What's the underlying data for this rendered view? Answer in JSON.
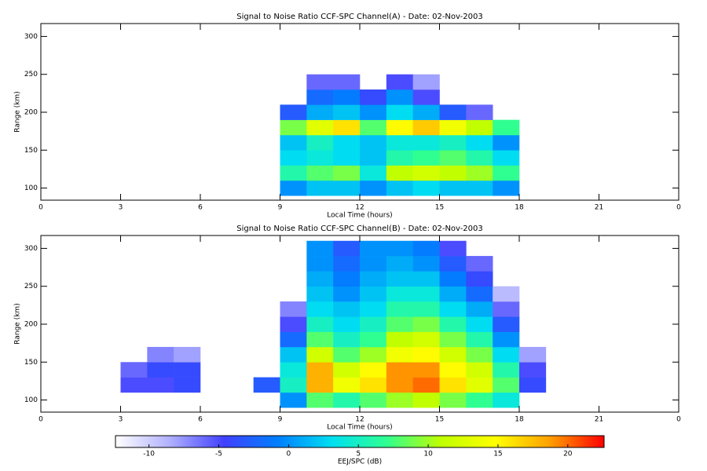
{
  "chart_data": [
    {
      "type": "heatmap",
      "title": "Signal to Noise Ratio CCF-SPC Channel(A) - Date: 02-Nov-2003",
      "xlabel": "Local Time (hours)",
      "ylabel": "Range (km)",
      "xlim": [
        0,
        24
      ],
      "xticks": [
        0,
        3,
        6,
        9,
        12,
        15,
        18,
        21,
        {
          "value": 24,
          "label": "0"
        }
      ],
      "ylim": [
        84,
        317
      ],
      "yticks": [
        100,
        150,
        200,
        250,
        300
      ],
      "x": [
        0.5,
        1.5,
        2.5,
        3.5,
        4.5,
        5.5,
        6.5,
        7.5,
        8.5,
        9.5,
        10.5,
        11.5,
        12.5,
        13.5,
        14.5,
        15.5,
        16.5,
        17.5,
        18.5,
        19.5,
        20.5,
        21.5,
        22.5,
        23.5
      ],
      "y": [
        100,
        120,
        140,
        160,
        180,
        200,
        220,
        240
      ],
      "z": [
        [
          null,
          null,
          null,
          null,
          null,
          null,
          null,
          null,
          null,
          0,
          2,
          2,
          0,
          2,
          3,
          2,
          2,
          0,
          null,
          null,
          null,
          null,
          null,
          null
        ],
        [
          null,
          null,
          null,
          null,
          null,
          null,
          null,
          null,
          null,
          6,
          8,
          9,
          4,
          11,
          12,
          11,
          10,
          7,
          null,
          null,
          null,
          null,
          null,
          null
        ],
        [
          null,
          null,
          null,
          null,
          null,
          null,
          null,
          null,
          null,
          3,
          4,
          3,
          2,
          6,
          7,
          8,
          6,
          3,
          null,
          null,
          null,
          null,
          null,
          null
        ],
        [
          null,
          null,
          null,
          null,
          null,
          null,
          null,
          null,
          null,
          2,
          5,
          3,
          2,
          4,
          4,
          5,
          3,
          0,
          null,
          null,
          null,
          null,
          null,
          null
        ],
        [
          null,
          null,
          null,
          null,
          null,
          null,
          null,
          null,
          null,
          9,
          13,
          16,
          8,
          15,
          17,
          14,
          11,
          7,
          null,
          null,
          null,
          null,
          null,
          null
        ],
        [
          null,
          null,
          null,
          null,
          null,
          null,
          null,
          null,
          null,
          -3,
          1,
          2,
          0,
          3,
          1,
          -3,
          -6,
          null,
          null,
          null,
          null,
          null,
          null,
          null
        ],
        [
          null,
          null,
          null,
          null,
          null,
          null,
          null,
          null,
          null,
          null,
          -2,
          -1,
          -4,
          0,
          -5,
          null,
          null,
          null,
          null,
          null,
          null,
          null,
          null,
          null
        ],
        [
          null,
          null,
          null,
          null,
          null,
          null,
          null,
          null,
          null,
          null,
          -6,
          -6,
          null,
          -5,
          -8,
          null,
          null,
          null,
          null,
          null,
          null,
          null,
          null,
          null
        ]
      ]
    },
    {
      "type": "heatmap",
      "title": "Signal to Noise Ratio CCF-SPC Channel(B) - Date: 02-Nov-2003",
      "xlabel": "Local Time (hours)",
      "ylabel": "Range (km)",
      "xlim": [
        0,
        24
      ],
      "xticks": [
        0,
        3,
        6,
        9,
        12,
        15,
        18,
        21,
        {
          "value": 24,
          "label": "0"
        }
      ],
      "ylim": [
        84,
        317
      ],
      "yticks": [
        100,
        150,
        200,
        250,
        300
      ],
      "x": [
        0.5,
        1.5,
        2.5,
        3.5,
        4.5,
        5.5,
        6.5,
        7.5,
        8.5,
        9.5,
        10.5,
        11.5,
        12.5,
        13.5,
        14.5,
        15.5,
        16.5,
        17.5,
        18.5,
        19.5,
        20.5,
        21.5,
        22.5,
        23.5
      ],
      "y": [
        100,
        120,
        140,
        160,
        180,
        200,
        220,
        240,
        260,
        280,
        300
      ],
      "z": [
        [
          null,
          null,
          null,
          null,
          null,
          null,
          null,
          null,
          null,
          0,
          8,
          6,
          8,
          10,
          11,
          9,
          7,
          4,
          null,
          null,
          null,
          null,
          null,
          null
        ],
        [
          null,
          null,
          null,
          -5,
          -5,
          -4,
          null,
          null,
          -3,
          5,
          18,
          14,
          16,
          19,
          20,
          16,
          13,
          8,
          -4,
          null,
          null,
          null,
          null,
          null
        ],
        [
          null,
          null,
          null,
          -6,
          -4,
          -4,
          null,
          null,
          null,
          4,
          18,
          12,
          15,
          19,
          19,
          15,
          12,
          6,
          -5,
          null,
          null,
          null,
          null,
          null
        ],
        [
          null,
          null,
          null,
          null,
          -7,
          -8,
          null,
          null,
          null,
          2,
          12,
          8,
          10,
          14,
          15,
          12,
          9,
          3,
          -8,
          null,
          null,
          null,
          null,
          null
        ],
        [
          null,
          null,
          null,
          null,
          null,
          null,
          null,
          null,
          null,
          -2,
          8,
          5,
          7,
          11,
          12,
          9,
          6,
          0,
          null,
          null,
          null,
          null,
          null,
          null
        ],
        [
          null,
          null,
          null,
          null,
          null,
          null,
          null,
          null,
          null,
          -5,
          5,
          3,
          5,
          8,
          9,
          6,
          3,
          -3,
          null,
          null,
          null,
          null,
          null,
          null
        ],
        [
          null,
          null,
          null,
          null,
          null,
          null,
          null,
          null,
          null,
          -7,
          3,
          2,
          3,
          6,
          6,
          3,
          1,
          -6,
          null,
          null,
          null,
          null,
          null,
          null
        ],
        [
          null,
          null,
          null,
          null,
          null,
          null,
          null,
          null,
          null,
          null,
          2,
          0,
          2,
          4,
          4,
          1,
          -2,
          -9,
          null,
          null,
          null,
          null,
          null,
          null
        ],
        [
          null,
          null,
          null,
          null,
          null,
          null,
          null,
          null,
          null,
          null,
          1,
          -1,
          1,
          2,
          2,
          -1,
          -4,
          null,
          null,
          null,
          null,
          null,
          null,
          null
        ],
        [
          null,
          null,
          null,
          null,
          null,
          null,
          null,
          null,
          null,
          null,
          0,
          -2,
          0,
          1,
          0,
          -3,
          -6,
          null,
          null,
          null,
          null,
          null,
          null,
          null
        ],
        [
          null,
          null,
          null,
          null,
          null,
          null,
          null,
          null,
          null,
          null,
          0,
          -3,
          0,
          0,
          -1,
          -5,
          null,
          null,
          null,
          null,
          null,
          null,
          null,
          null
        ]
      ]
    }
  ],
  "colorbar": {
    "label": "EEJ/SPC (dB)",
    "zlim": [
      -12.4,
      22.6
    ],
    "ticks": [
      -10,
      -5,
      0,
      5,
      10,
      15,
      20
    ],
    "colormap": [
      "#ffffff",
      "#b0b0ff",
      "#4040ff",
      "#0080ff",
      "#00e0f0",
      "#30ff90",
      "#c0ff00",
      "#ffff00",
      "#ffa000",
      "#ff0000"
    ]
  }
}
